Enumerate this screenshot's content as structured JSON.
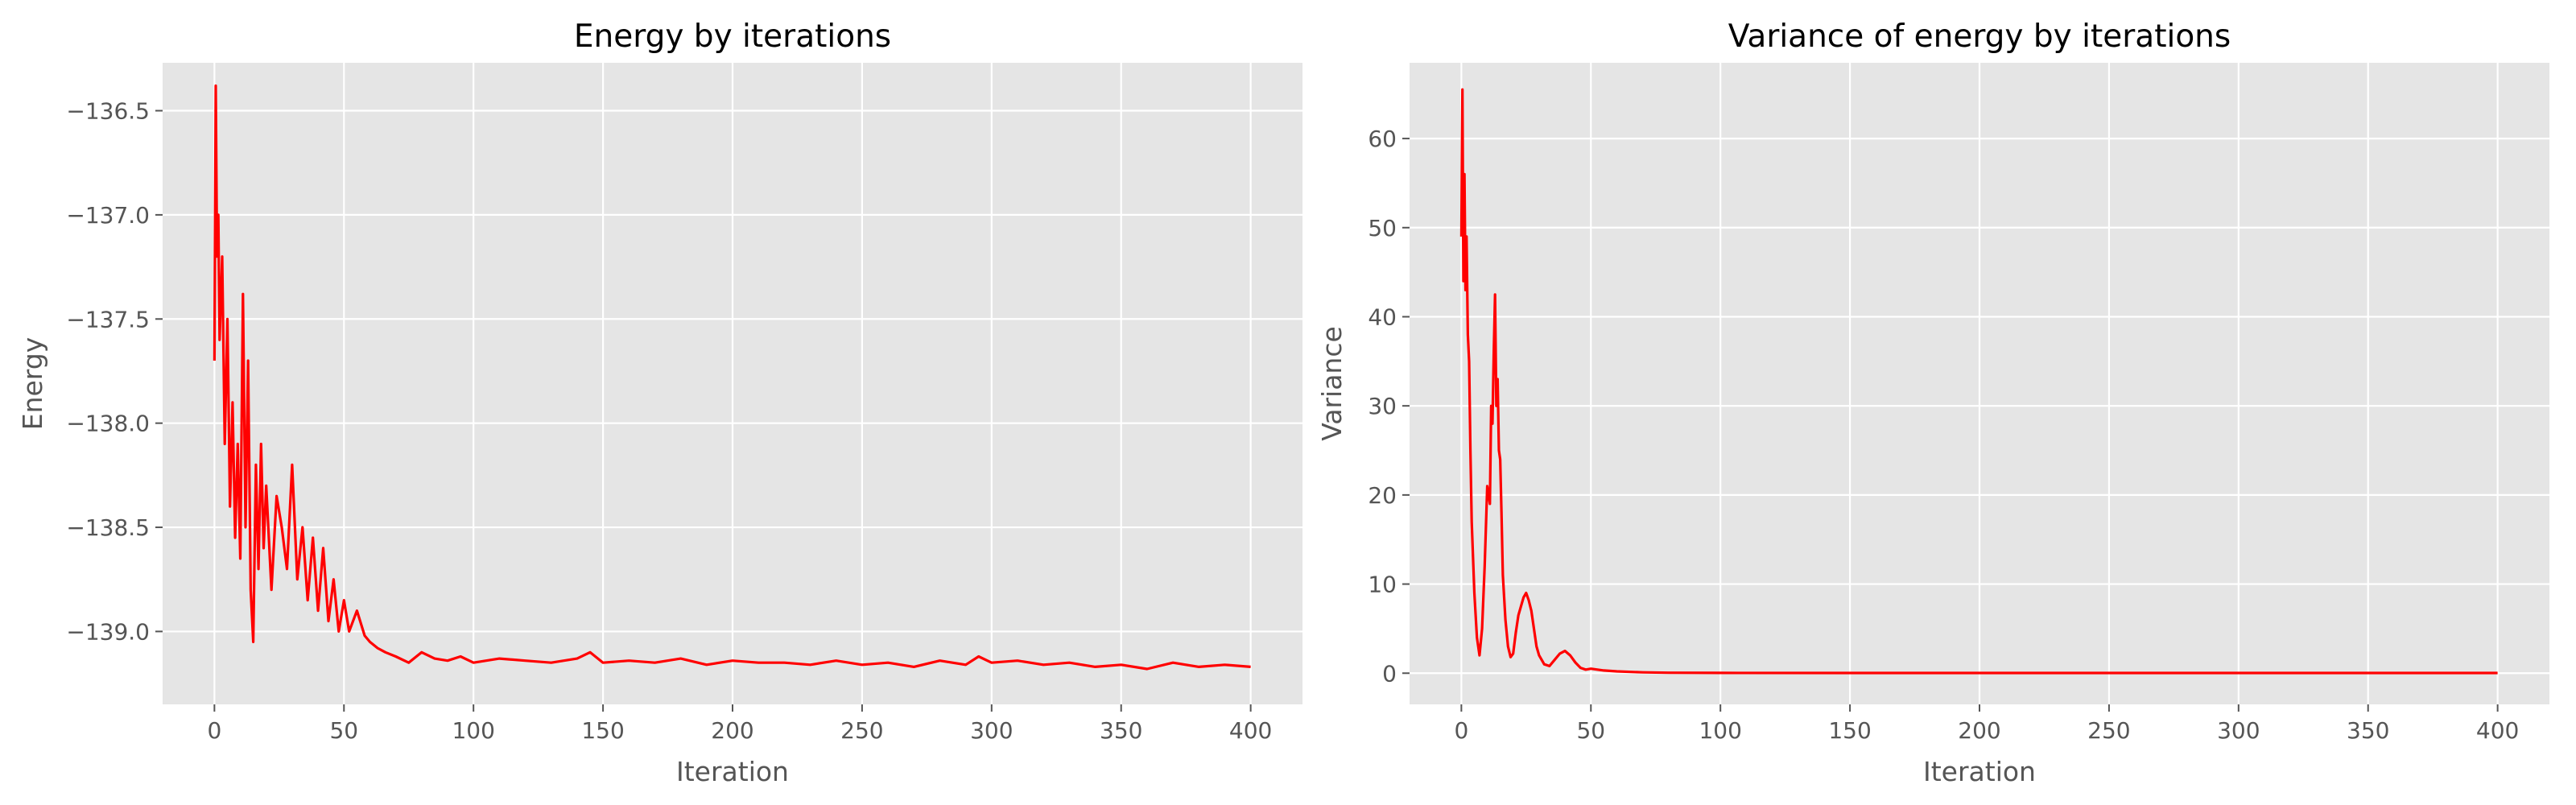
{
  "figure": {
    "charts": [
      {
        "title": "Energy by iterations",
        "xlabel": "Iteration",
        "ylabel": "Energy",
        "xticks": [
          "0",
          "50",
          "100",
          "150",
          "200",
          "250",
          "300",
          "350",
          "400"
        ],
        "yticks": [
          "−136.5",
          "−137.0",
          "−137.5",
          "−138.0",
          "−138.5",
          "−139.0"
        ]
      },
      {
        "title": "Variance of energy by iterations",
        "xlabel": "Iteration",
        "ylabel": "Variance",
        "xticks": [
          "0",
          "50",
          "100",
          "150",
          "200",
          "250",
          "300",
          "350",
          "400"
        ],
        "yticks": [
          "0",
          "10",
          "20",
          "30",
          "40",
          "50",
          "60"
        ]
      }
    ]
  },
  "chart_data": [
    {
      "type": "line",
      "title": "Energy by iterations",
      "xlabel": "Iteration",
      "ylabel": "Energy",
      "xlim": [
        -20,
        420
      ],
      "ylim": [
        -139.35,
        -136.27
      ],
      "xticks": [
        0,
        50,
        100,
        150,
        200,
        250,
        300,
        350,
        400
      ],
      "yticks": [
        -136.5,
        -137.0,
        -137.5,
        -138.0,
        -138.5,
        -139.0
      ],
      "grid": true,
      "legend": "none",
      "series_color": "#ff0000",
      "series": [
        {
          "x": [
            0,
            0.5,
            1,
            1.5,
            2,
            3,
            4,
            5,
            6,
            7,
            8,
            9,
            10,
            11,
            12,
            13,
            14,
            15,
            16,
            17,
            18,
            19,
            20,
            22,
            24,
            26,
            28,
            30,
            32,
            34,
            36,
            38,
            40,
            42,
            44,
            46,
            48,
            50,
            52,
            55,
            58,
            60,
            63,
            66,
            70,
            75,
            80,
            85,
            90,
            95,
            100,
            110,
            120,
            130,
            140,
            145,
            150,
            160,
            170,
            180,
            190,
            200,
            210,
            220,
            230,
            240,
            250,
            260,
            270,
            280,
            290,
            295,
            300,
            310,
            320,
            330,
            340,
            350,
            360,
            370,
            380,
            390,
            400
          ],
          "y": [
            -137.7,
            -136.38,
            -137.2,
            -137.0,
            -137.6,
            -137.2,
            -138.1,
            -137.5,
            -138.4,
            -137.9,
            -138.55,
            -138.1,
            -138.65,
            -137.38,
            -138.5,
            -137.7,
            -138.8,
            -139.05,
            -138.2,
            -138.7,
            -138.1,
            -138.6,
            -138.3,
            -138.8,
            -138.35,
            -138.5,
            -138.7,
            -138.2,
            -138.75,
            -138.5,
            -138.85,
            -138.55,
            -138.9,
            -138.6,
            -138.95,
            -138.75,
            -139.0,
            -138.85,
            -139.0,
            -138.9,
            -139.02,
            -139.05,
            -139.08,
            -139.1,
            -139.12,
            -139.15,
            -139.1,
            -139.13,
            -139.14,
            -139.12,
            -139.15,
            -139.13,
            -139.14,
            -139.15,
            -139.13,
            -139.1,
            -139.15,
            -139.14,
            -139.15,
            -139.13,
            -139.16,
            -139.14,
            -139.15,
            -139.15,
            -139.16,
            -139.14,
            -139.16,
            -139.15,
            -139.17,
            -139.14,
            -139.16,
            -139.12,
            -139.15,
            -139.14,
            -139.16,
            -139.15,
            -139.17,
            -139.16,
            -139.18,
            -139.15,
            -139.17,
            -139.16,
            -139.17
          ]
        }
      ]
    },
    {
      "type": "line",
      "title": "Variance of energy by iterations",
      "xlabel": "Iteration",
      "ylabel": "Variance",
      "xlim": [
        -20,
        420
      ],
      "ylim": [
        -3.5,
        68.5
      ],
      "xticks": [
        0,
        50,
        100,
        150,
        200,
        250,
        300,
        350,
        400
      ],
      "yticks": [
        0,
        10,
        20,
        30,
        40,
        50,
        60
      ],
      "grid": true,
      "legend": "none",
      "series_color": "#ff0000",
      "series": [
        {
          "x": [
            0,
            0.4,
            0.8,
            1.2,
            1.6,
            2,
            2.5,
            3,
            3.5,
            4,
            5,
            6,
            7,
            8,
            9,
            10,
            11,
            11.5,
            12,
            12.5,
            13,
            13.5,
            14,
            14.5,
            15,
            15.5,
            16,
            17,
            18,
            19,
            20,
            21,
            22,
            23,
            24,
            25,
            26,
            27,
            28,
            29,
            30,
            32,
            34,
            36,
            38,
            40,
            42,
            44,
            46,
            48,
            50,
            55,
            60,
            70,
            80,
            100,
            150,
            200,
            250,
            300,
            350,
            400
          ],
          "y": [
            49,
            65.5,
            44,
            56,
            43,
            49,
            38,
            35,
            25,
            17,
            9,
            4,
            2,
            5,
            12,
            21,
            19,
            30,
            28,
            36,
            42.5,
            30,
            33,
            25,
            24,
            18,
            11,
            6,
            3,
            1.8,
            2.2,
            4.5,
            6.5,
            7.5,
            8.5,
            9,
            8.2,
            7,
            5,
            3,
            2,
            1,
            0.8,
            1.5,
            2.2,
            2.5,
            2,
            1.2,
            0.6,
            0.4,
            0.5,
            0.3,
            0.2,
            0.1,
            0.05,
            0.03,
            0.02,
            0.02,
            0.02,
            0.02,
            0.02,
            0.02
          ]
        }
      ]
    }
  ]
}
